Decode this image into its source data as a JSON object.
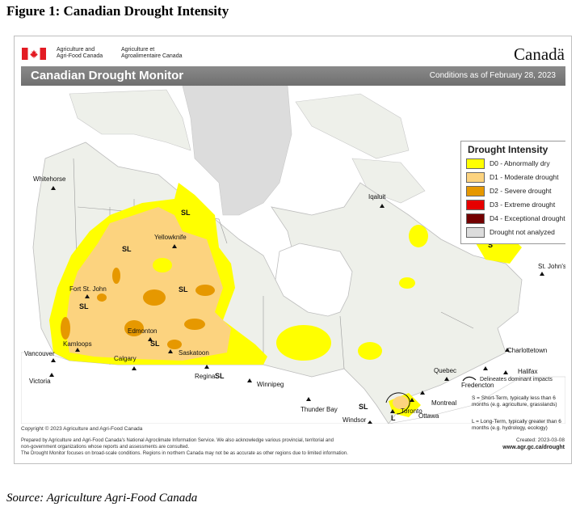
{
  "figure_title": "Figure 1: Canadian Drought Intensity",
  "source_note": "Source: Agriculture Agri-Food Canada",
  "agency": {
    "english_line1": "Agriculture and",
    "english_line2": "Agri-Food Canada",
    "french_line1": "Agriculture et",
    "french_line2": "Agroalimentaire Canada",
    "wordmark": "Canadä"
  },
  "header": {
    "title": "Canadian Drought Monitor",
    "conditions": "Conditions as of February 28, 2023"
  },
  "legend": {
    "title": "Drought Intensity",
    "items": [
      {
        "label": "D0 - Abnormally dry",
        "color": "#ffff00"
      },
      {
        "label": "D1 - Moderate drought",
        "color": "#fcd37f"
      },
      {
        "label": "D2 - Severe drought",
        "color": "#e69800"
      },
      {
        "label": "D3 - Extreme drought",
        "color": "#e60000"
      },
      {
        "label": "D4 - Exceptional drought",
        "color": "#730000"
      },
      {
        "label": "Drought not analyzed",
        "color": "#dcdcdc"
      }
    ]
  },
  "impacts": {
    "heading": "Delineates dominant impacts",
    "short_term": "S = Short-Term, typically less than 6 months (e.g. agriculture, grasslands)",
    "long_term": "L = Long-Term, typically greater than 6 months (e.g. hydrology, ecology)"
  },
  "cities": [
    {
      "name": "Whitehorse"
    },
    {
      "name": "Yellowknife"
    },
    {
      "name": "Iqaluit"
    },
    {
      "name": "Fort St. John"
    },
    {
      "name": "Edmonton"
    },
    {
      "name": "Kamloops"
    },
    {
      "name": "Vancouver"
    },
    {
      "name": "Calgary"
    },
    {
      "name": "Saskatoon"
    },
    {
      "name": "Regina"
    },
    {
      "name": "Victoria"
    },
    {
      "name": "Winnipeg"
    },
    {
      "name": "Thunder Bay"
    },
    {
      "name": "Quebec"
    },
    {
      "name": "Charlottetown"
    },
    {
      "name": "Halifax"
    },
    {
      "name": "Fredencton"
    },
    {
      "name": "Montreal"
    },
    {
      "name": "Ottawa"
    },
    {
      "name": "Toronto"
    },
    {
      "name": "Windsor"
    },
    {
      "name": "St. John's"
    }
  ],
  "impact_labels": [
    "SL",
    "SL",
    "SL",
    "SL",
    "SL",
    "SL",
    "S",
    "SL",
    "L"
  ],
  "copyright": "Copyright © 2023 Agriculture and Agri-Food Canada",
  "footer": {
    "line1": "Prepared by Agriculture and Agri-Food Canada's National Agroclimate Information Service. We also acknowledge various provincial, territorial and",
    "line2": "non-government organizations whose reports and assessments are consulted.",
    "line3": "The Drought Monitor focuses on broad-scale conditions. Regions in northern Canada may not be as accurate as other regions due to limited information.",
    "created": "Created: 2023-03-08",
    "url": "www.agr.gc.ca/drought"
  }
}
